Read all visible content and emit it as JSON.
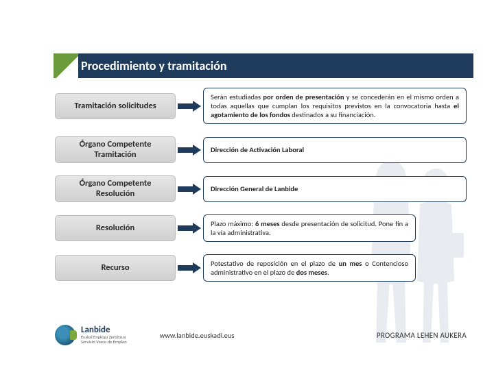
{
  "header": {
    "title": "Procedimiento y tramitación",
    "bar_color": "#1f3b5c",
    "title_color": "#ffffff"
  },
  "arrow_color": "#1f3b5c",
  "label_bg_gradient_top": "#e6e6e6",
  "label_bg_gradient_bottom": "#d0d0d0",
  "desc_border_color": "#1f3b5c",
  "rows": [
    {
      "label": "Tramitación solicitudes",
      "desc_html": "Serán estudiadas <b>por orden de presentación</b> y se concederán en el mismo orden a todas aquellas que cumplan los requisitos previstos en la convocatoria hasta <b>el agotamiento de los fondos</b> destinados a su financiación.",
      "short": false
    },
    {
      "label": "Órgano Competente Tramitación",
      "desc_html": "<b>Dirección de Activación Laboral</b>",
      "short": false
    },
    {
      "label": "Órgano Competente Resolución",
      "desc_html": "<b>Dirección General de Lanbide</b>",
      "short": false
    },
    {
      "label": "Resolución",
      "desc_html": "Plazo máximo: <b>6 meses</b> desde presentación de solicitud. Pone fin a la vía administrativa.",
      "short": true
    },
    {
      "label": "Recurso",
      "desc_html": "Potestativo de reposición en el plazo de <b>un mes</b> o Contencioso administrativo en el plazo de <b>dos meses</b>.",
      "short": true
    }
  ],
  "footer": {
    "brand": "Lanbide",
    "sub1": "Euskal Enplegu Zerbitzua",
    "sub2": "Servicio Vasco de Empleo",
    "url": "www.lanbide.euskadi.eus",
    "program": "PROGRAMA LEHEN AUKERA"
  }
}
